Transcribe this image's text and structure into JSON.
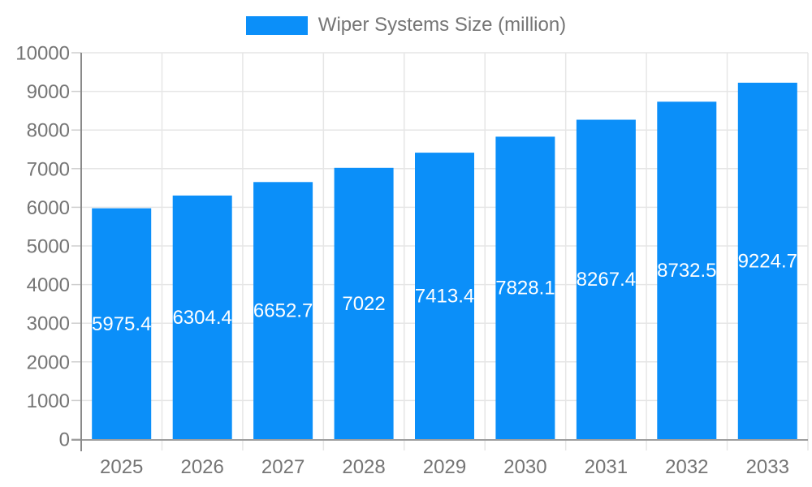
{
  "chart_data": {
    "type": "bar",
    "title": "Wiper Systems Size (million)",
    "legend": {
      "label": "Wiper Systems Size (million)",
      "position": "top"
    },
    "categories": [
      "2025",
      "2026",
      "2027",
      "2028",
      "2029",
      "2030",
      "2031",
      "2032",
      "2033"
    ],
    "series": [
      {
        "name": "Wiper Systems Size (million)",
        "color": "#0b8ff9",
        "values": [
          5975.4,
          6304.4,
          6652.7,
          7022,
          7413.4,
          7828.1,
          8267.4,
          8732.5,
          9224.7
        ],
        "value_labels": [
          "5975.4",
          "6304.4",
          "6652.7",
          "7022",
          "7413.4",
          "7828.1",
          "8267.4",
          "8732.5",
          "9224.7"
        ]
      }
    ],
    "xlabel": "",
    "ylabel": "",
    "ylim": [
      0,
      10000
    ],
    "yticks": [
      0,
      1000,
      2000,
      3000,
      4000,
      5000,
      6000,
      7000,
      8000,
      9000,
      10000
    ],
    "ytick_labels": [
      "0",
      "1000",
      "2000",
      "3000",
      "4000",
      "5000",
      "6000",
      "7000",
      "8000",
      "9000",
      "10000"
    ],
    "grid": true,
    "value_label_color": "#ffffff",
    "axis_label_color": "#757575",
    "gridline_color": "#e6e6e6",
    "tick_color": "#cfcfcf",
    "y_axis_line_color": "#8a8a8a",
    "x_axis_line_color": "#9e9e9e"
  }
}
